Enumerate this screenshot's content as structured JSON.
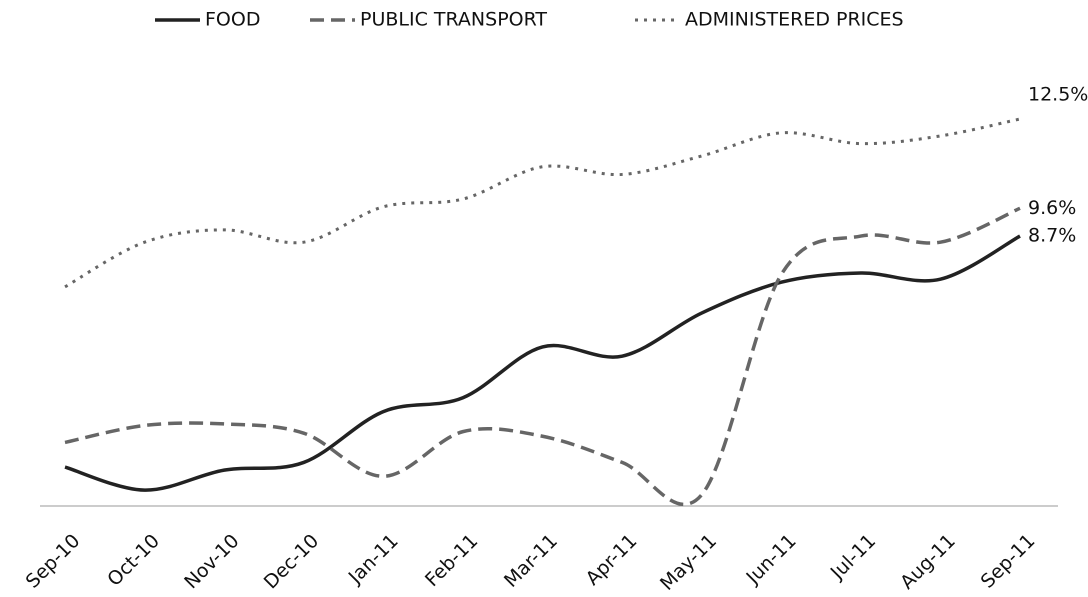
{
  "chart_data": {
    "type": "line",
    "categories": [
      "Sep-10",
      "Oct-10",
      "Nov-10",
      "Dec-10",
      "Jan-11",
      "Feb-11",
      "Mar-11",
      "Apr-11",
      "May-11",
      "Jun-11",
      "Jul-11",
      "Aug-11",
      "Sep-11"
    ],
    "series": [
      {
        "name": "FOOD",
        "color": "#222222",
        "dash": "solid",
        "values": [
          1.2,
          0.45,
          1.1,
          1.35,
          3.0,
          3.45,
          5.1,
          4.8,
          6.2,
          7.2,
          7.5,
          7.3,
          8.7
        ],
        "value_labels": [
          null,
          null,
          null,
          null,
          null,
          null,
          null,
          null,
          null,
          null,
          null,
          null,
          "8.7%"
        ]
      },
      {
        "name": "PUBLIC TRANSPORT",
        "color": "#666666",
        "dash": "dashed",
        "values": [
          2.0,
          2.55,
          2.6,
          2.3,
          0.9,
          2.35,
          2.2,
          1.35,
          0.3,
          7.45,
          8.7,
          8.5,
          9.6
        ],
        "value_labels": [
          null,
          null,
          null,
          null,
          null,
          null,
          null,
          null,
          null,
          null,
          null,
          null,
          "9.6%"
        ]
      },
      {
        "name": "ADMINISTERED PRICES",
        "color": "#666666",
        "dash": "dotted",
        "values": [
          7.05,
          8.5,
          8.9,
          8.5,
          9.65,
          9.9,
          10.95,
          10.7,
          11.3,
          12.05,
          11.7,
          11.95,
          12.5
        ],
        "value_labels": [
          null,
          null,
          null,
          null,
          null,
          null,
          null,
          null,
          null,
          null,
          null,
          null,
          "12.5%"
        ]
      }
    ],
    "ylim": [
      0,
      14
    ],
    "legend": "top"
  }
}
